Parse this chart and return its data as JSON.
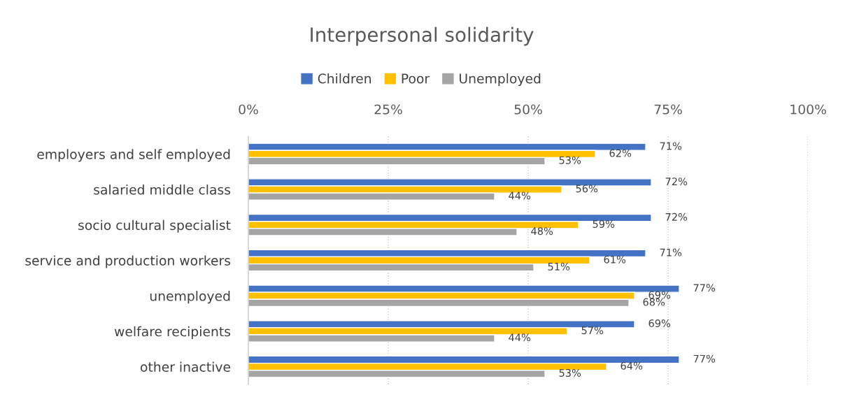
{
  "chart_data": {
    "type": "bar",
    "orientation": "horizontal",
    "title": "Interpersonal solidarity",
    "categories": [
      "employers and self employed",
      "salaried middle class",
      "socio cultural specialist",
      "service and production workers",
      "unemployed",
      "welfare recipients",
      "other inactive"
    ],
    "series": [
      {
        "name": "Children",
        "color": "#4472c4",
        "values": [
          71,
          72,
          72,
          71,
          77,
          69,
          77
        ],
        "value_labels": [
          "71%",
          "72%",
          "72%",
          "71%",
          "77%",
          "69%",
          "77%"
        ]
      },
      {
        "name": "Poor",
        "color": "#ffc000",
        "values": [
          62,
          56,
          59,
          61,
          69,
          57,
          64
        ],
        "value_labels": [
          "62%",
          "56%",
          "59%",
          "61%",
          "69%",
          "57%",
          "64%"
        ]
      },
      {
        "name": "Unemployed",
        "color": "#a5a5a5",
        "values": [
          53,
          44,
          48,
          51,
          68,
          44,
          53
        ],
        "value_labels": [
          "53%",
          "44%",
          "48%",
          "51%",
          "68%",
          "44%",
          "53%"
        ]
      }
    ],
    "xlim": [
      0,
      100
    ],
    "xticks": [
      {
        "value": 0,
        "label": "0%"
      },
      {
        "value": 25,
        "label": "25%"
      },
      {
        "value": 50,
        "label": "50%"
      },
      {
        "value": 75,
        "label": "75%"
      },
      {
        "value": 100,
        "label": "100%"
      }
    ],
    "grid": "x",
    "legend": "top",
    "line_style": "dotted"
  }
}
